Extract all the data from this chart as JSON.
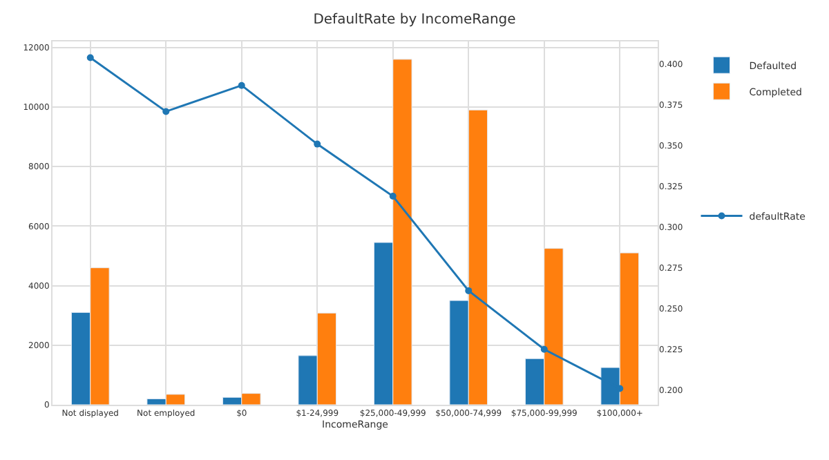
{
  "chart_data": {
    "type": "bar",
    "title": "DefaultRate by IncomeRange",
    "xlabel": "IncomeRange",
    "categories": [
      "Not displayed",
      "Not employed",
      "$0",
      "$1-24,999",
      "$25,000-49,999",
      "$50,000-74,999",
      "$75,000-99,999",
      "$100,000+"
    ],
    "series": [
      {
        "name": "Defaulted",
        "color": "#1f77b4",
        "values": [
          3100,
          200,
          250,
          1650,
          5450,
          3500,
          1550,
          1250
        ]
      },
      {
        "name": "Completed",
        "color": "#ff7f0e",
        "values": [
          4600,
          350,
          380,
          3080,
          11600,
          9900,
          5250,
          5100
        ]
      },
      {
        "name": "defaultRate",
        "type": "line",
        "axis": "y2",
        "color": "#1f77b4",
        "marker": "circle",
        "line_style": "solid",
        "values": [
          0.404,
          0.371,
          0.387,
          0.351,
          0.319,
          0.261,
          0.225,
          0.201
        ]
      }
    ],
    "ylim": [
      0,
      12200
    ],
    "yticks": [
      0,
      2000,
      4000,
      6000,
      8000,
      10000,
      12000
    ],
    "y2lim": [
      0.191,
      0.414
    ],
    "y2ticks": [
      {
        "value": 0.2,
        "label": "0.200"
      },
      {
        "value": 0.225,
        "label": "0.225"
      },
      {
        "value": 0.25,
        "label": "0.250"
      },
      {
        "value": 0.275,
        "label": "0.275"
      },
      {
        "value": 0.3,
        "label": "0.300"
      },
      {
        "value": 0.325,
        "label": "0.325"
      },
      {
        "value": 0.35,
        "label": "0.350"
      },
      {
        "value": 0.375,
        "label": "0.375"
      },
      {
        "value": 0.4,
        "label": "0.400"
      }
    ],
    "grid": true,
    "legend": "right"
  }
}
